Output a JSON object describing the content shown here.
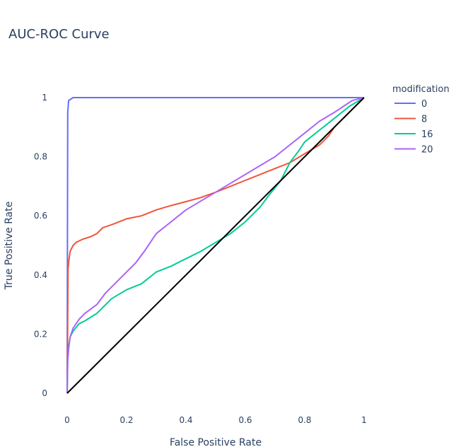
{
  "chart_data": {
    "type": "line",
    "title": "AUC-ROC Curve",
    "xlabel": "False Positive Rate",
    "ylabel": "True Positive Rate",
    "xlim": [
      0,
      1
    ],
    "ylim": [
      0,
      1
    ],
    "x_ticks": [
      "0",
      "0.2",
      "0.4",
      "0.6",
      "0.8",
      "1"
    ],
    "y_ticks": [
      "0",
      "0.2",
      "0.4",
      "0.6",
      "0.8",
      "1"
    ],
    "grid": false,
    "legend": {
      "title": "modification",
      "placement": "top-right"
    },
    "series": [
      {
        "name": "0",
        "color": "#636efa",
        "x": [
          0,
          0.001,
          0.002,
          0.005,
          0.02,
          0.1,
          0.5,
          0.9,
          1.0
        ],
        "y": [
          0,
          0.5,
          0.95,
          0.99,
          1.0,
          1.0,
          1.0,
          1.0,
          1.0
        ]
      },
      {
        "name": "8",
        "color": "#ef553b",
        "x": [
          0,
          0.001,
          0.003,
          0.006,
          0.01,
          0.02,
          0.03,
          0.05,
          0.08,
          0.1,
          0.12,
          0.15,
          0.2,
          0.25,
          0.3,
          0.35,
          0.4,
          0.45,
          0.5,
          0.55,
          0.6,
          0.65,
          0.7,
          0.75,
          0.8,
          0.85,
          0.88,
          0.9,
          0.93,
          0.95,
          0.97,
          1.0
        ],
        "y": [
          0,
          0.13,
          0.42,
          0.45,
          0.48,
          0.5,
          0.51,
          0.52,
          0.53,
          0.54,
          0.56,
          0.57,
          0.59,
          0.6,
          0.62,
          0.635,
          0.648,
          0.662,
          0.68,
          0.7,
          0.72,
          0.74,
          0.76,
          0.78,
          0.81,
          0.84,
          0.87,
          0.9,
          0.93,
          0.95,
          0.97,
          1.0
        ]
      },
      {
        "name": "16",
        "color": "#00cc96",
        "x": [
          0,
          0.002,
          0.005,
          0.01,
          0.02,
          0.04,
          0.06,
          0.1,
          0.15,
          0.2,
          0.25,
          0.3,
          0.35,
          0.4,
          0.45,
          0.5,
          0.55,
          0.6,
          0.65,
          0.68,
          0.72,
          0.75,
          0.78,
          0.8,
          0.85,
          0.9,
          0.95,
          1.0
        ],
        "y": [
          0,
          0.12,
          0.16,
          0.19,
          0.21,
          0.235,
          0.245,
          0.27,
          0.32,
          0.35,
          0.37,
          0.41,
          0.43,
          0.455,
          0.48,
          0.51,
          0.54,
          0.58,
          0.63,
          0.67,
          0.72,
          0.78,
          0.82,
          0.85,
          0.89,
          0.93,
          0.97,
          1.0
        ]
      },
      {
        "name": "20",
        "color": "#ab63fa",
        "x": [
          0,
          0.002,
          0.005,
          0.01,
          0.02,
          0.04,
          0.06,
          0.1,
          0.13,
          0.17,
          0.2,
          0.23,
          0.26,
          0.3,
          0.35,
          0.4,
          0.45,
          0.5,
          0.55,
          0.6,
          0.65,
          0.7,
          0.75,
          0.8,
          0.85,
          0.9,
          0.93,
          0.96,
          1.0
        ],
        "y": [
          0,
          0.11,
          0.15,
          0.19,
          0.22,
          0.25,
          0.27,
          0.3,
          0.34,
          0.38,
          0.41,
          0.44,
          0.48,
          0.54,
          0.58,
          0.62,
          0.65,
          0.68,
          0.71,
          0.74,
          0.77,
          0.8,
          0.84,
          0.88,
          0.92,
          0.95,
          0.97,
          0.99,
          1.0
        ]
      },
      {
        "name": "",
        "color": "#000000",
        "x": [
          0,
          1
        ],
        "y": [
          0,
          1
        ]
      }
    ]
  }
}
